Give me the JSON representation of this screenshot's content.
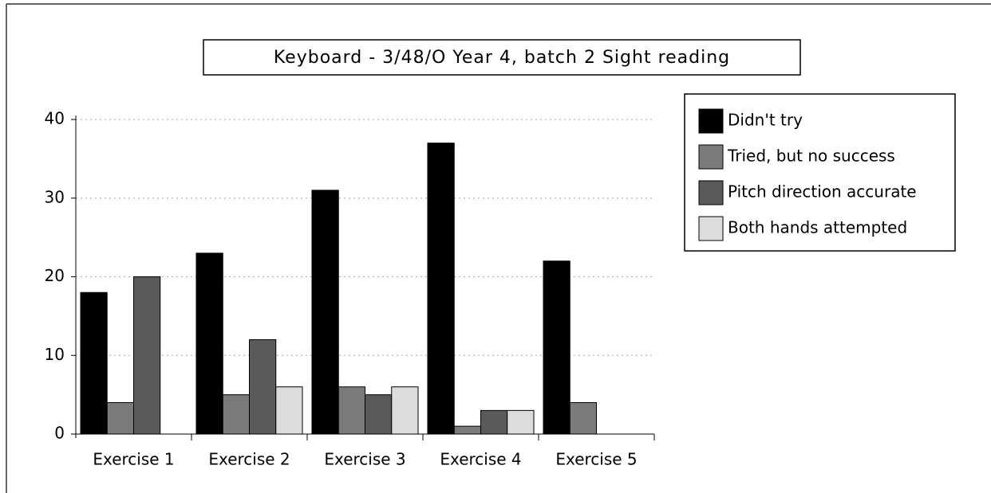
{
  "chart_data": {
    "type": "bar",
    "title": "Keyboard - 3/48/O Year 4, batch 2 Sight reading",
    "categories": [
      "Exercise 1",
      "Exercise 2",
      "Exercise 3",
      "Exercise 4",
      "Exercise 5"
    ],
    "series": [
      {
        "name": "Didn't try",
        "color": "#000000",
        "values": [
          18,
          23,
          31,
          37,
          22
        ]
      },
      {
        "name": "Tried, but no success",
        "color": "#7a7a7a",
        "values": [
          4,
          5,
          6,
          1,
          4
        ]
      },
      {
        "name": "Pitch direction accurate",
        "color": "#5a5a5a",
        "values": [
          20,
          12,
          5,
          3,
          0
        ]
      },
      {
        "name": "Both hands attempted",
        "color": "#dcdcdc",
        "values": [
          0,
          6,
          6,
          3,
          0
        ]
      }
    ],
    "ylim": [
      0,
      40
    ],
    "yticks": [
      0,
      10,
      20,
      30,
      40
    ],
    "grid": true,
    "legend": "right"
  }
}
